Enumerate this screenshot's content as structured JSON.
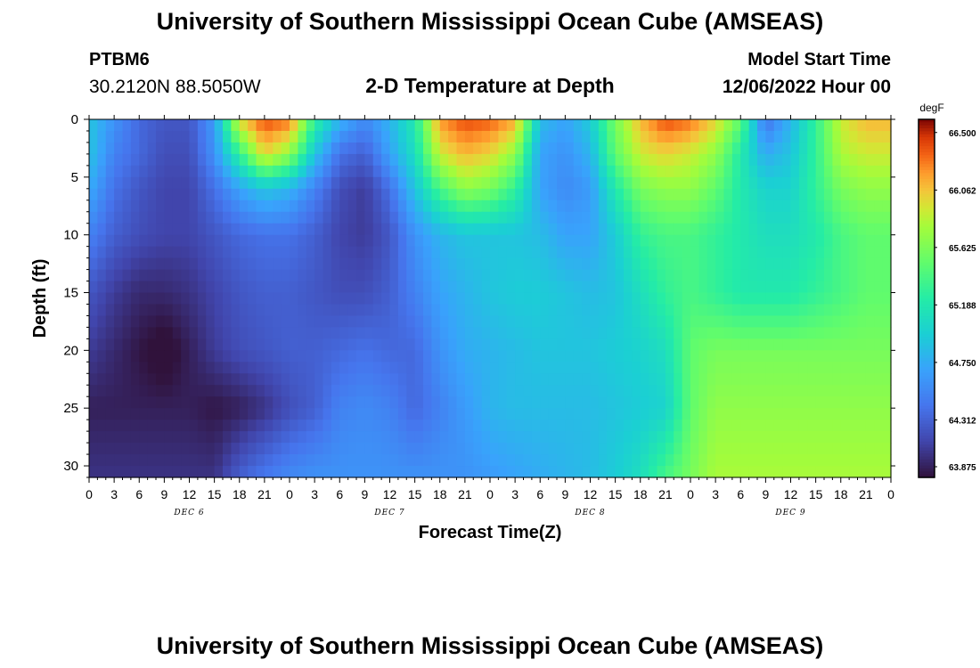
{
  "header": {
    "title": "University of Southern Mississippi Ocean Cube (AMSEAS)",
    "station": "PTBM6",
    "coords": "30.2120N  88.5050W",
    "subtitle": "2-D Temperature at Depth",
    "model_start_label": "Model Start Time",
    "model_start_value": "12/06/2022 Hour 00"
  },
  "footer": {
    "title": "University of Southern Mississippi Ocean Cube (AMSEAS)"
  },
  "chart_data": {
    "type": "heatmap",
    "title": "2-D Temperature at Depth",
    "xlabel": "Forecast Time(Z)",
    "ylabel": "Depth (ft)",
    "x_tick_labels": [
      "0",
      "3",
      "6",
      "9",
      "12",
      "15",
      "18",
      "21",
      "0",
      "3",
      "6",
      "9",
      "12",
      "15",
      "18",
      "21",
      "0",
      "3",
      "6",
      "9",
      "12",
      "15",
      "18",
      "21",
      "0",
      "3",
      "6",
      "9",
      "12",
      "15",
      "18",
      "21",
      "0"
    ],
    "day_labels": [
      "DEC 6",
      "DEC 7",
      "DEC 8",
      "DEC 9"
    ],
    "x_hours": [
      0,
      3,
      6,
      9,
      12,
      15,
      18,
      21,
      24,
      27,
      30,
      33,
      36,
      39,
      42,
      45,
      48,
      51,
      54,
      57,
      60,
      63,
      66,
      69,
      72,
      75,
      78,
      81,
      84,
      87,
      90,
      93,
      96
    ],
    "xlim": [
      0,
      96
    ],
    "ylim": [
      0,
      31
    ],
    "y_ticks": [
      0,
      5,
      10,
      15,
      20,
      25,
      30
    ],
    "y_inverted": true,
    "depths": [
      0,
      3,
      6,
      10,
      15,
      20,
      25,
      31
    ],
    "values": [
      [
        64.9,
        64.6,
        64.35,
        64.25,
        64.25,
        64.65,
        66.0,
        66.4,
        66.3,
        65.3,
        64.8,
        64.55,
        64.8,
        65.2,
        66.2,
        66.4,
        66.35,
        66.15,
        64.85,
        64.7,
        64.95,
        65.6,
        66.1,
        66.4,
        66.3,
        66.0,
        65.5,
        64.4,
        64.8,
        65.3,
        65.9,
        66.1,
        66.1
      ],
      [
        64.9,
        64.5,
        64.35,
        64.2,
        64.2,
        64.6,
        65.3,
        66.0,
        65.7,
        64.9,
        64.4,
        64.3,
        64.7,
        65.1,
        65.9,
        66.1,
        66.0,
        65.7,
        64.7,
        64.6,
        64.8,
        65.5,
        65.9,
        66.0,
        65.9,
        65.7,
        65.2,
        64.75,
        64.9,
        65.3,
        65.8,
        65.9,
        65.9
      ],
      [
        64.75,
        64.4,
        64.25,
        64.15,
        64.15,
        64.4,
        64.7,
        64.9,
        64.8,
        64.5,
        64.2,
        64.1,
        64.4,
        64.9,
        65.4,
        65.7,
        65.6,
        65.3,
        64.7,
        64.55,
        64.65,
        65.2,
        65.6,
        65.7,
        65.7,
        65.5,
        65.2,
        65.0,
        65.0,
        65.3,
        65.6,
        65.7,
        65.7
      ],
      [
        64.5,
        64.3,
        64.2,
        64.15,
        64.15,
        64.25,
        64.35,
        64.4,
        64.4,
        64.3,
        64.15,
        64.1,
        64.25,
        64.6,
        64.8,
        64.9,
        64.9,
        64.9,
        64.85,
        64.7,
        64.7,
        64.95,
        65.3,
        65.4,
        65.4,
        65.3,
        65.2,
        65.1,
        65.1,
        65.2,
        65.4,
        65.5,
        65.5
      ],
      [
        64.25,
        64.1,
        64.0,
        64.0,
        64.05,
        64.15,
        64.25,
        64.3,
        64.3,
        64.25,
        64.2,
        64.2,
        64.3,
        64.5,
        64.7,
        64.8,
        64.9,
        64.95,
        64.95,
        64.9,
        64.85,
        64.9,
        65.1,
        65.3,
        65.4,
        65.3,
        65.2,
        65.2,
        65.2,
        65.3,
        65.4,
        65.5,
        65.5
      ],
      [
        64.1,
        64.0,
        63.9,
        63.8,
        63.95,
        64.1,
        64.2,
        64.25,
        64.3,
        64.3,
        64.35,
        64.4,
        64.35,
        64.35,
        64.6,
        64.75,
        64.8,
        64.85,
        64.9,
        64.9,
        64.9,
        64.95,
        65.0,
        65.1,
        65.5,
        65.6,
        65.6,
        65.6,
        65.6,
        65.6,
        65.6,
        65.6,
        65.6
      ],
      [
        63.95,
        63.95,
        63.95,
        63.95,
        63.95,
        63.9,
        63.95,
        64.05,
        64.2,
        64.3,
        64.5,
        64.55,
        64.5,
        64.35,
        64.5,
        64.65,
        64.8,
        64.85,
        64.85,
        64.85,
        64.85,
        64.9,
        64.95,
        65.0,
        65.5,
        65.7,
        65.7,
        65.7,
        65.7,
        65.7,
        65.7,
        65.7,
        65.7
      ],
      [
        64.05,
        64.05,
        64.05,
        64.05,
        64.05,
        64.05,
        64.3,
        64.45,
        64.55,
        64.6,
        64.6,
        64.6,
        64.6,
        64.6,
        64.6,
        64.6,
        64.65,
        64.7,
        64.75,
        64.8,
        64.85,
        64.95,
        65.1,
        65.4,
        65.6,
        65.8,
        65.8,
        65.8,
        65.8,
        65.8,
        65.8,
        65.8,
        65.8
      ]
    ],
    "colorbar": {
      "unit": "degF",
      "min": 63.875,
      "max": 66.6,
      "tick_values": [
        63.875,
        64.312,
        64.75,
        65.188,
        65.625,
        66.062,
        66.5
      ],
      "tick_labels": [
        "63.875",
        "64.312",
        "64.750",
        "65.188",
        "65.625",
        "66.062",
        "66.500"
      ],
      "colormap": "turbo"
    }
  }
}
